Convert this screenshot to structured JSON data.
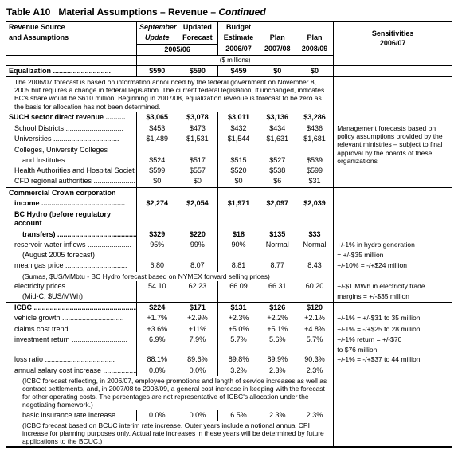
{
  "title_prefix": "Table A10",
  "title_main": "Material Assumptions – Revenue – ",
  "title_suffix": "Continued",
  "headers": {
    "left_l1": "Revenue Source",
    "left_l2": "and Assumptions",
    "c1_l1": "September",
    "c1_l2": "Update",
    "c2_l1": "Updated",
    "c2_l2": "Forecast",
    "c3_l1": "Budget",
    "c3_l2": "Estimate",
    "c3_l3": "2006/07",
    "c4_l1": "Plan",
    "c4_l2": "2007/08",
    "c5_l1": "Plan",
    "c5_l2": "2008/09",
    "year_0506": "2005/06",
    "sens_l1": "Sensitivities",
    "sens_l2": "2006/07",
    "units": "($ millions)"
  },
  "equalization": {
    "label": "Equalization",
    "v": [
      "$590",
      "$590",
      "$459",
      "$0",
      "$0"
    ],
    "note": "The 2006/07 forecast is based on information announced by the federal government on November 8, 2005 but requires a change in federal legislation. The current federal legislation, if unchanged, indicates BC's share would be $610 million. Beginning in 2007/08, equalization revenue is forecast to be zero as the basis for allocation has not been determined."
  },
  "such": {
    "label": "SUCH sector direct revenue",
    "v": [
      "$3,065",
      "$3,078",
      "$3,011",
      "$3,136",
      "$3,286"
    ],
    "rows": [
      {
        "label": "School Districts",
        "v": [
          "$453",
          "$473",
          "$432",
          "$434",
          "$436"
        ]
      },
      {
        "label": "Universities",
        "v": [
          "$1,489",
          "$1,531",
          "$1,544",
          "$1,631",
          "$1,681"
        ]
      },
      {
        "label": "Colleges, University Colleges",
        "v": [
          "",
          "",
          "",
          "",
          ""
        ]
      },
      {
        "label": "and Institutes",
        "indent": 2,
        "v": [
          "$524",
          "$517",
          "$515",
          "$527",
          "$539"
        ]
      },
      {
        "label": "Health Authorities and Hospital Societies",
        "v": [
          "$599",
          "$557",
          "$520",
          "$538",
          "$599"
        ]
      },
      {
        "label": "CFD regional authorities",
        "v": [
          "$0",
          "$0",
          "$0",
          "$6",
          "$31"
        ]
      }
    ],
    "sens": "Management forecasts based on policy assumptions provided by the relevant ministries – subject to final approval by the boards of these organizations"
  },
  "crown": {
    "label_l1": "Commercial Crown corporation",
    "label_l2": "income",
    "v": [
      "$2,274",
      "$2,054",
      "$1,971",
      "$2,097",
      "$2,039"
    ]
  },
  "hydro": {
    "label_l1": "BC Hydro (before regulatory account",
    "label_l2": "transfers)",
    "v": [
      "$329",
      "$220",
      "$18",
      "$135",
      "$33"
    ],
    "rows": [
      {
        "label": "reservoir water inflows",
        "v": [
          "95%",
          "99%",
          "90%",
          "Normal",
          "Normal"
        ],
        "sens": "+/-1% in hydro generation"
      },
      {
        "label": "(August 2005 forecast)",
        "indent": 2,
        "v": [
          "",
          "",
          "",
          "",
          ""
        ],
        "sens": "= +/-$35 million"
      },
      {
        "label": "mean gas price",
        "v": [
          "6.80",
          "8.07",
          "8.81",
          "8.77",
          "8.43"
        ],
        "sens": "+/-10% = -/+$24 million"
      },
      {
        "label": "(Sumas, $US/MMbtu - BC Hydro forecast based on NYMEX forward selling prices)",
        "indent": 2,
        "span": true
      },
      {
        "label": "electricity prices",
        "v": [
          "54.10",
          "62.23",
          "66.09",
          "66.31",
          "60.20"
        ],
        "sens": "+/-$1 MWh in electricity trade"
      },
      {
        "label": "(Mid-C, $US/MWh)",
        "indent": 2,
        "v": [
          "",
          "",
          "",
          "",
          ""
        ],
        "sens": "margins = +/-$35 million"
      }
    ]
  },
  "icbc": {
    "label": "ICBC",
    "v": [
      "$224",
      "$171",
      "$131",
      "$126",
      "$120"
    ],
    "rows": [
      {
        "label": "vehicle growth",
        "v": [
          "+1.7%",
          "+2.9%",
          "+2.3%",
          "+2.2%",
          "+2.1%"
        ],
        "sens": "+/-1% = +/-$31 to 35 million"
      },
      {
        "label": "claims cost trend",
        "v": [
          "+3.6%",
          "+11%",
          "+5.0%",
          "+5.1%",
          "+4.8%"
        ],
        "sens": "+/-1% = -/+$25 to 28 million"
      },
      {
        "label": "investment return",
        "v": [
          "6.9%",
          "7.9%",
          "5.7%",
          "5.6%",
          "5.7%"
        ],
        "sens": "+/-1% return = +/-$70"
      },
      {
        "label": "",
        "v": [
          "",
          "",
          "",
          "",
          ""
        ],
        "sens": "to $76 million"
      },
      {
        "label": "loss ratio",
        "v": [
          "88.1%",
          "89.6%",
          "89.8%",
          "89.9%",
          "90.3%"
        ],
        "sens": "+/-1% = -/+$37 to 44 million"
      },
      {
        "label": "annual salary cost increase",
        "v": [
          "0.0%",
          "0.0%",
          "3.2%",
          "2.3%",
          "2.3%"
        ]
      }
    ],
    "note1": "(ICBC forecast reflecting, in 2006/07, employee promotions and length of service increases as well as contract settlements, and, in 2007/08 to 2008/09, a general cost increase in keeping with the forecast for other operating costs. The percentages are not representative of ICBC's allocation under the negotiating framework.)",
    "basic": {
      "label": "basic insurance rate increase",
      "v": [
        "0.0%",
        "0.0%",
        "6.5%",
        "2.3%",
        "2.3%"
      ]
    },
    "note2": "(ICBC forecast based on BCUC interim rate increase. Outer years include a notional annual CPI increase for planning purposes only. Actual rate increases in these years will be determined by future applications to the BCUC.)"
  }
}
